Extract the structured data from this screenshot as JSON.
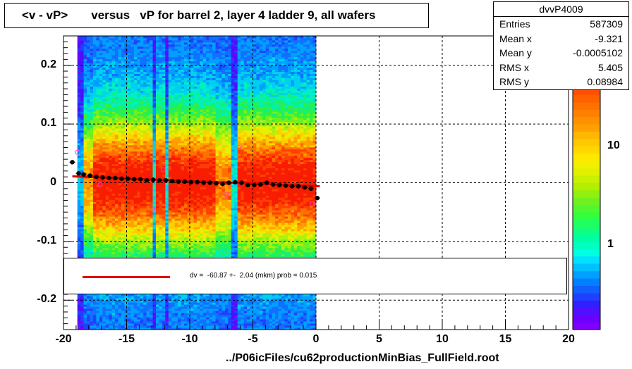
{
  "title": "<v - vP>       versus   vP for barrel 2, layer 4 ladder 9, all wafers",
  "stats": {
    "name": "dvvP4009",
    "rows": [
      {
        "label": "Entries",
        "value": "587309"
      },
      {
        "label": "Mean x",
        "value": "-9.321"
      },
      {
        "label": "Mean y",
        "value": "-0.0005102"
      },
      {
        "label": "RMS x",
        "value": "5.405"
      },
      {
        "label": "RMS y",
        "value": "0.08984"
      }
    ]
  },
  "fit_legend": "dv =  -60.87 +-  2.04 (mkm) prob = 0.015",
  "footer": "../P06icFiles/cu62productionMinBias_FullField.root",
  "colors": {
    "fit_line": "#e00000",
    "profile_points": "#000000",
    "open_markers": "#ff40c0"
  },
  "chart_data": {
    "type": "heatmap",
    "title": "<v - vP>       versus   vP for barrel 2, layer 4 ladder 9, all wafers",
    "xlabel": "",
    "ylabel": "",
    "xlim": [
      -20,
      20
    ],
    "ylim": [
      -0.25,
      0.25
    ],
    "x_ticks": [
      "-20",
      "-15",
      "-10",
      "-5",
      "0",
      "5",
      "10",
      "15",
      "20"
    ],
    "y_ticks": [
      "-0.2",
      "-0.1",
      "0",
      "0.1",
      "0.2"
    ],
    "z_ticks": [
      "1",
      "10"
    ],
    "z_scale": "log",
    "grid": true,
    "occupied_x_range": [
      -18.9,
      0.0
    ],
    "profile": {
      "x": [
        -19.3,
        -18.8,
        -18.4,
        -17.9,
        -17.4,
        -16.9,
        -16.4,
        -15.9,
        -15.4,
        -14.9,
        -14.4,
        -13.9,
        -13.4,
        -12.9,
        -12.4,
        -11.9,
        -11.4,
        -10.9,
        -10.4,
        -9.9,
        -9.4,
        -8.9,
        -8.4,
        -7.9,
        -7.4,
        -6.9,
        -6.4,
        -5.9,
        -5.4,
        -4.9,
        -4.4,
        -3.9,
        -3.4,
        -2.9,
        -2.4,
        -1.9,
        -1.4,
        -0.9,
        -0.4,
        0.1
      ],
      "y": [
        0.035,
        0.016,
        0.014,
        0.012,
        0.01,
        0.009,
        0.008,
        0.008,
        0.007,
        0.007,
        0.006,
        0.006,
        0.004,
        0.005,
        0.004,
        0.004,
        0.003,
        0.002,
        0.002,
        0.001,
        0.001,
        0.0,
        0.0,
        -0.001,
        -0.002,
        0.0,
        0.001,
        0.0,
        -0.004,
        -0.004,
        -0.003,
        0.0,
        -0.003,
        -0.004,
        -0.005,
        -0.006,
        -0.006,
        -0.008,
        -0.01,
        -0.026
      ]
    },
    "open_markers": {
      "x": [
        -18.9,
        -17.1,
        -12.9,
        -12.1,
        -7.1,
        -6.1,
        -0.3
      ],
      "y": [
        0.052,
        -0.003,
        -0.046,
        0.022,
        -0.02,
        0.06,
        -0.036
      ]
    },
    "fit_line": {
      "x": [
        -19.3,
        0.3
      ],
      "y": [
        0.011,
        -0.006
      ]
    }
  }
}
